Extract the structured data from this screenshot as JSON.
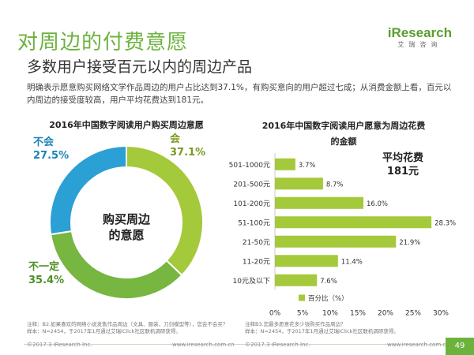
{
  "header": {
    "title": "对周边的付费意愿",
    "subtitle": "多数用户接受百元以内的周边产品",
    "description": "明确表示愿意购买网络文学作品周边的用户占比达到37.1%，有购买意向的用户超过七成；从消费金额上看，百元以内周边的接受度较高，用户平均花费达到181元。",
    "logo_text": "Research",
    "logo_prefix": "i",
    "logo_sub": "艾瑞咨询"
  },
  "chart_data": [
    {
      "type": "pie",
      "title": "2016年中国数字阅读用户购买周边意愿",
      "center_label": [
        "购买周边",
        "的意愿"
      ],
      "slices": [
        {
          "name": "会",
          "value": 37.1,
          "value_label": "37.1%",
          "color": "#a4c93a"
        },
        {
          "name": "不一定",
          "value": 35.4,
          "value_label": "35.4%",
          "color": "#76b641"
        },
        {
          "name": "不会",
          "value": 27.5,
          "value_label": "27.5%",
          "color": "#2aa0d4"
        }
      ]
    },
    {
      "type": "bar",
      "orientation": "horizontal",
      "title": [
        "2016年中国数字阅读用户愿意为周边花费",
        "的金额"
      ],
      "categories": [
        "501-1000元",
        "201-500元",
        "101-200元",
        "51-100元",
        "21-50元",
        "11-20元",
        "10元及以下"
      ],
      "values": [
        3.7,
        8.7,
        16.0,
        28.3,
        21.9,
        11.4,
        7.6
      ],
      "value_labels": [
        "3.7%",
        "8.7%",
        "16.0%",
        "28.3%",
        "21.9%",
        "11.4%",
        "7.6%"
      ],
      "xlim": [
        0,
        30
      ],
      "xticks": [
        0,
        5,
        10,
        15,
        20,
        25,
        30
      ],
      "xtick_labels": [
        "0%",
        "5%",
        "10%",
        "15%",
        "20%",
        "25%",
        "30%"
      ],
      "legend": "百分比（%）",
      "legend_position": "bottom",
      "bar_color": "#a4c93a",
      "avg_box": [
        "平均花费",
        "181元"
      ]
    }
  ],
  "notes": {
    "left": "注释：B2.如果喜欢的网络小说发售作品周边（文具、服装、刀剑模型等），您会不会买？",
    "left_sample": "样本：N=2454，于2017年1月通过艾瑞iClick社区联机调研获得。",
    "right": "注释B3.您最多愿意花多少钱购买作品周边？",
    "right_sample": "样本：N=2454，于2017年1月通过艾瑞iClick社区联机调研获得。"
  },
  "footer": {
    "copyright_left": "©2017.3 iResearch Inc.",
    "url_left": "www.iresearch.com.cn",
    "copyright_right": "©2017.3 iResearch Inc.",
    "url_right": "www.iresearch.com.cn",
    "page_number": "49"
  }
}
